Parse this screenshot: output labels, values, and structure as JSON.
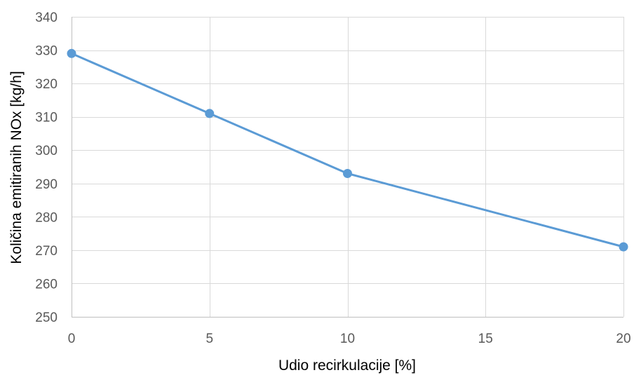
{
  "chart_data": {
    "type": "scatter",
    "title": "",
    "xlabel": "Udio recirkulacije [%]",
    "ylabel": "Količina emitiranih NOx [kg/h]",
    "xlim": [
      0,
      20
    ],
    "ylim": [
      250,
      340
    ],
    "x_ticks": [
      0,
      5,
      10,
      15,
      20
    ],
    "y_ticks": [
      250,
      260,
      270,
      280,
      290,
      300,
      310,
      320,
      330,
      340
    ],
    "grid": true,
    "legend": "none",
    "series": [
      {
        "x": [
          0,
          5,
          10,
          20
        ],
        "y": [
          329,
          311,
          293,
          271
        ],
        "color": "#5b9bd5",
        "line": true,
        "markers": true
      }
    ]
  }
}
